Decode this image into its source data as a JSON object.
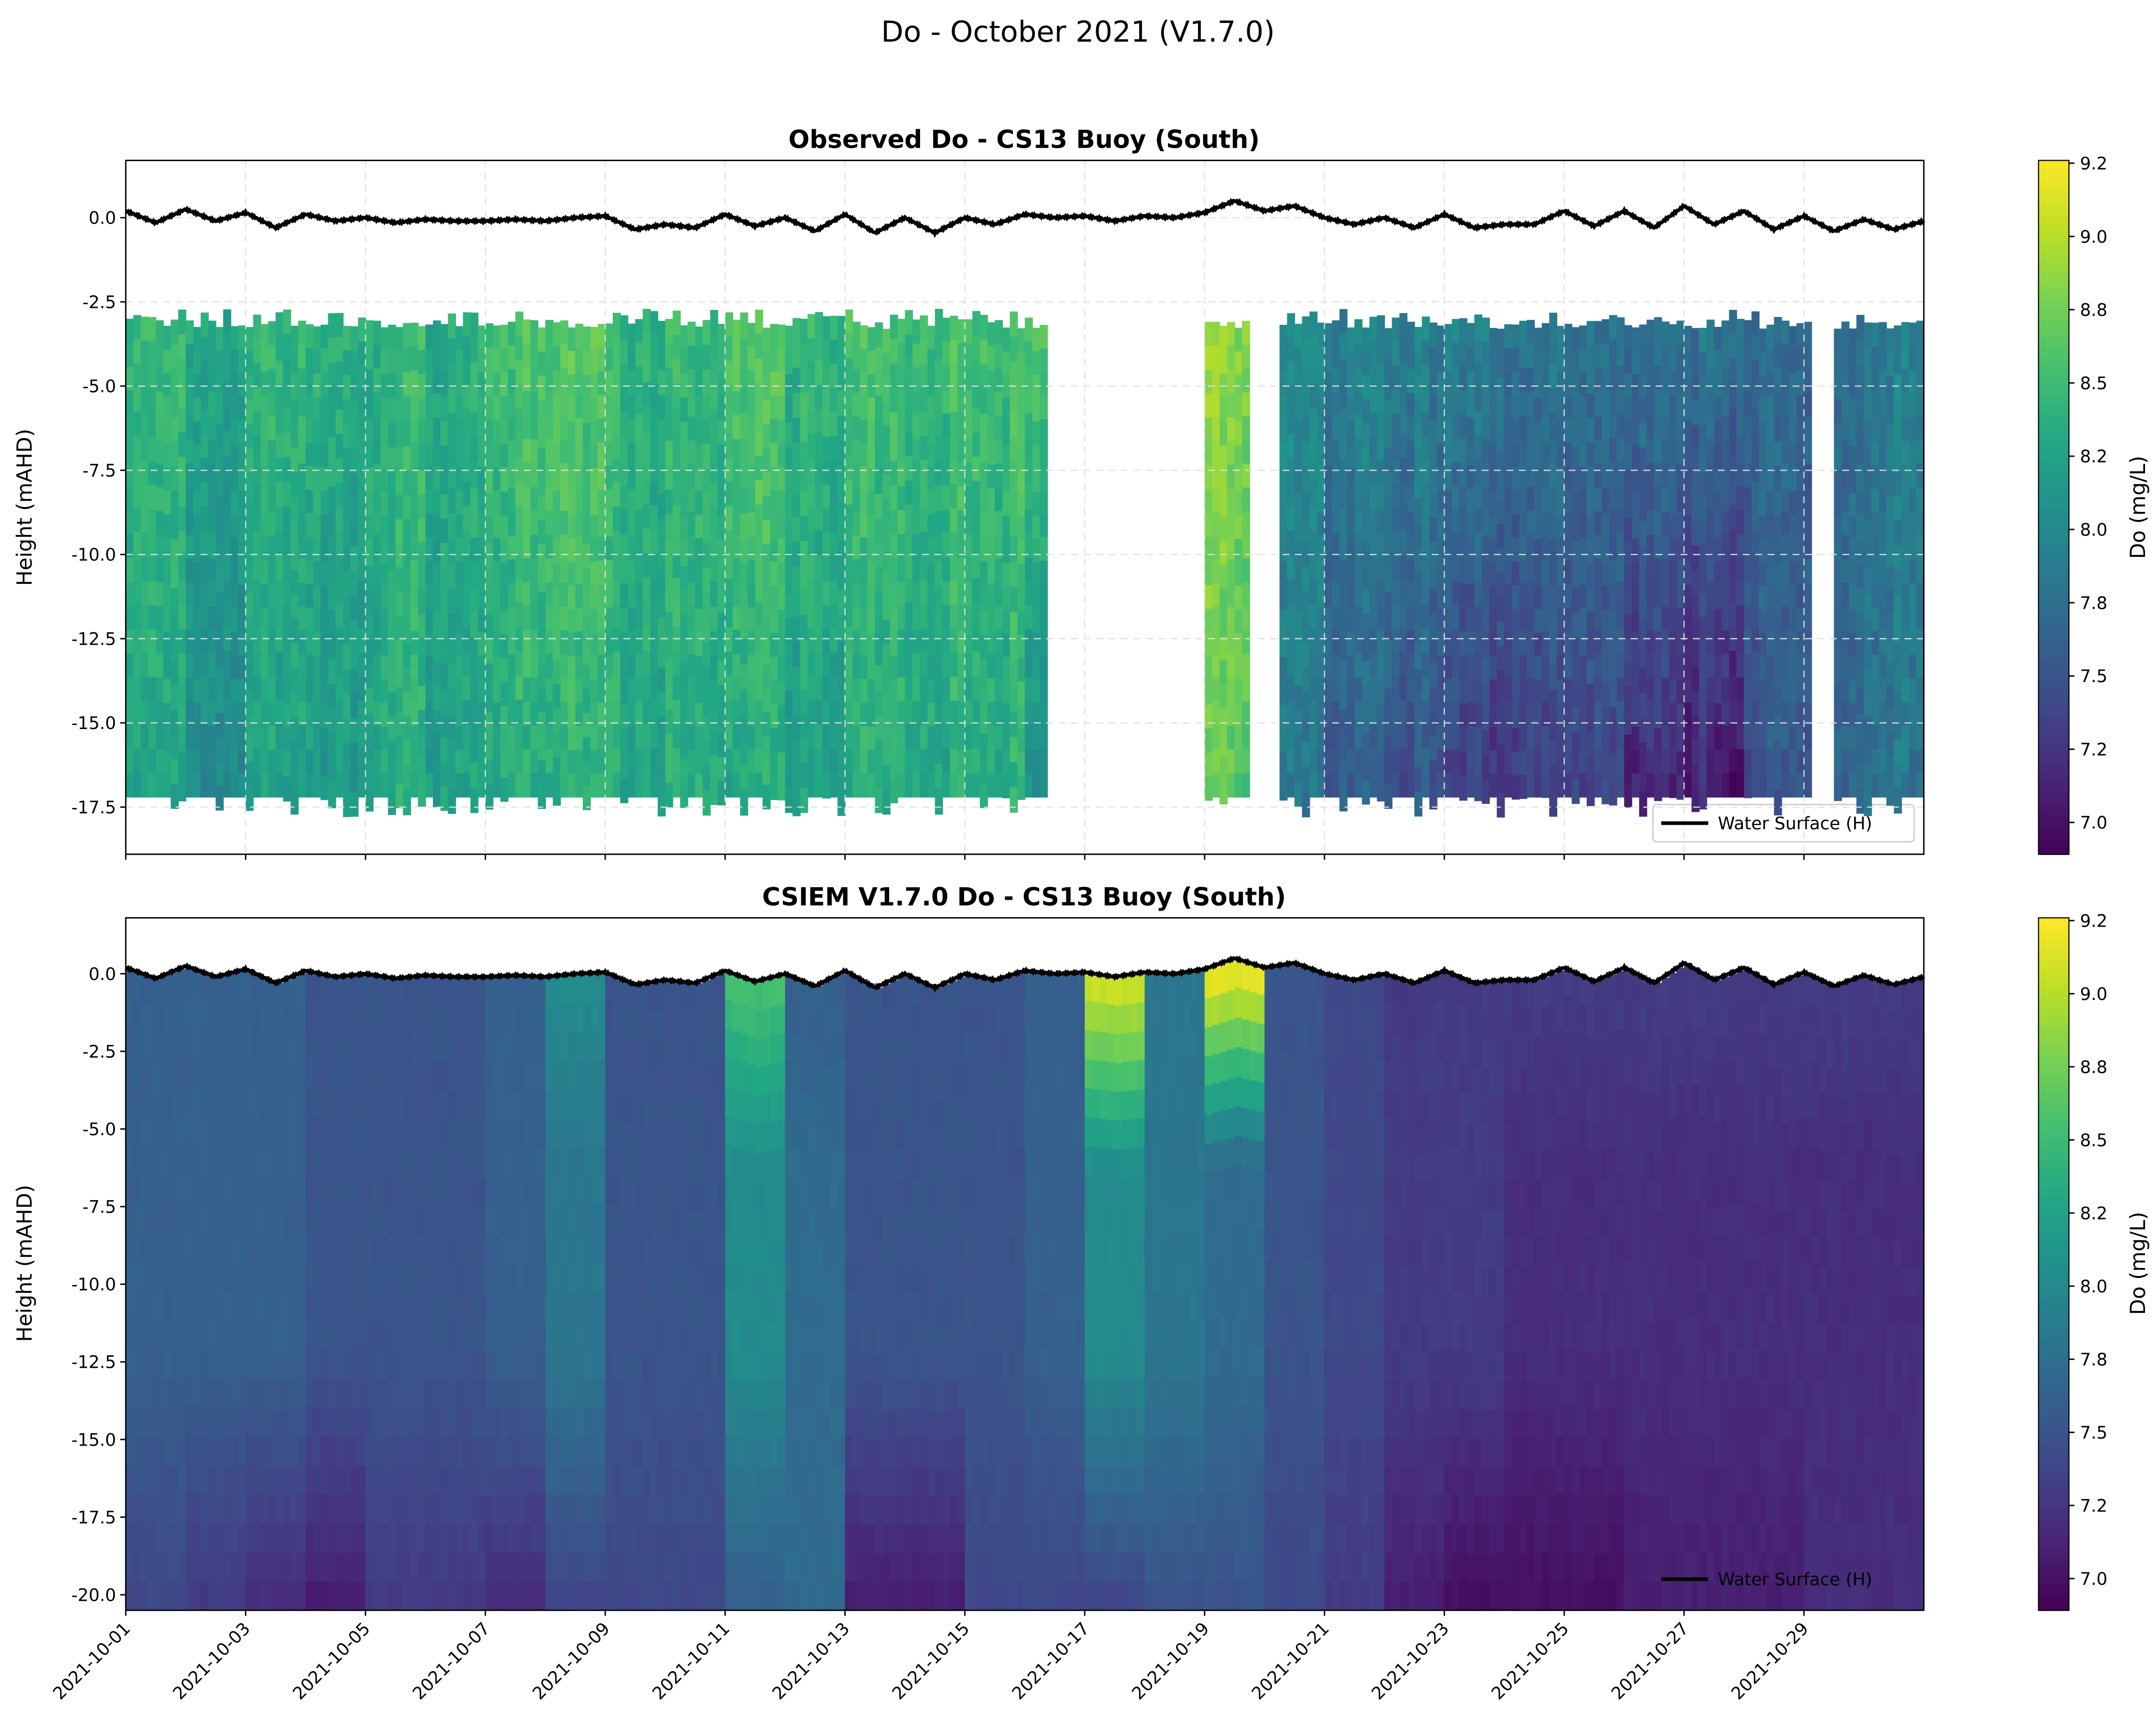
{
  "suptitle": "Do - October 2021 (V1.7.0)",
  "colors": {
    "water_surface": "#000000",
    "grid": "#e0e0e0",
    "colormap": "viridis"
  },
  "chart_data": [
    {
      "type": "heatmap",
      "title": "Observed Do - CS13 Buoy (South)",
      "ylabel": "Height (mAHD)",
      "xlim": [
        "2021-10-01",
        "2021-10-31"
      ],
      "ylim": [
        -18.9,
        1.7
      ],
      "grid": true,
      "yticks": [
        "0.0",
        "-2.5",
        "-5.0",
        "-7.5",
        "-10.0",
        "-12.5",
        "-15.0",
        "-17.5"
      ],
      "ytick_values": [
        0,
        -2.5,
        -5,
        -7.5,
        -10,
        -12.5,
        -15,
        -17.5
      ],
      "colorbar": {
        "label": "Do (mg/L)",
        "vmin": 6.9,
        "vmax": 9.2,
        "ticks": [
          "7.0",
          "7.2",
          "7.5",
          "7.8",
          "8.0",
          "8.2",
          "8.5",
          "8.8",
          "9.0",
          "9.2"
        ]
      },
      "legend": {
        "entries": [
          "Water Surface (H)"
        ],
        "placement": "lower right"
      },
      "observed_periods": [
        [
          "2021-10-01",
          "2021-10-16 08:00"
        ],
        [
          "2021-10-18 06:00",
          "2021-10-19 17:00"
        ],
        [
          "2021-10-20 06:00",
          "2021-10-29 03:00"
        ],
        [
          "2021-10-29 12:00",
          "2021-10-31"
        ]
      ],
      "profile_depth_range": [
        -3.0,
        -17.2
      ],
      "daily_do_top": [
        8.5,
        8.3,
        8.4,
        8.3,
        8.4,
        8.3,
        8.5,
        8.6,
        8.4,
        8.4,
        8.6,
        8.4,
        8.5,
        8.5,
        8.5,
        8.6,
        null,
        null,
        8.8,
        8.0,
        7.9,
        7.9,
        7.9,
        7.8,
        7.8,
        7.8,
        7.8,
        7.7,
        7.7,
        7.9
      ],
      "daily_do_bottom": [
        8.3,
        8.0,
        8.2,
        8.1,
        8.3,
        8.2,
        8.3,
        8.4,
        8.3,
        8.3,
        8.3,
        8.2,
        8.3,
        8.3,
        8.3,
        8.1,
        null,
        null,
        8.6,
        7.8,
        7.6,
        7.5,
        7.3,
        7.3,
        7.4,
        7.2,
        7.1,
        7.5,
        7.6,
        7.8
      ]
    },
    {
      "type": "heatmap",
      "title": "CSIEM V1.7.0 Do - CS13 Buoy (South)",
      "ylabel": "Height (mAHD)",
      "xlim": [
        "2021-10-01",
        "2021-10-31"
      ],
      "ylim": [
        -20.5,
        1.8
      ],
      "grid": false,
      "yticks": [
        "0.0",
        "-2.5",
        "-5.0",
        "-7.5",
        "-10.0",
        "-12.5",
        "-15.0",
        "-17.5",
        "-20.0"
      ],
      "ytick_values": [
        0,
        -2.5,
        -5,
        -7.5,
        -10,
        -12.5,
        -15,
        -17.5,
        -20
      ],
      "xticks": [
        "2021-10-01",
        "2021-10-03",
        "2021-10-05",
        "2021-10-07",
        "2021-10-09",
        "2021-10-11",
        "2021-10-13",
        "2021-10-15",
        "2021-10-17",
        "2021-10-19",
        "2021-10-21",
        "2021-10-23",
        "2021-10-25",
        "2021-10-27",
        "2021-10-29"
      ],
      "colorbar": {
        "label": "Do (mg/L)",
        "vmin": 6.9,
        "vmax": 9.2,
        "ticks": [
          "7.0",
          "7.2",
          "7.5",
          "7.8",
          "8.0",
          "8.2",
          "8.5",
          "8.8",
          "9.0",
          "9.2"
        ]
      },
      "legend": {
        "entries": [
          "Water Surface (H)"
        ],
        "placement": "lower right"
      },
      "profile_bottom": -20.5,
      "daily_do_top": [
        7.6,
        7.6,
        7.6,
        7.5,
        7.5,
        7.5,
        7.6,
        8.0,
        7.5,
        7.5,
        8.5,
        7.6,
        7.5,
        7.5,
        7.5,
        7.6,
        9.0,
        7.8,
        9.1,
        7.5,
        7.4,
        7.3,
        7.3,
        7.3,
        7.3,
        7.3,
        7.3,
        7.3,
        7.3,
        7.3
      ],
      "daily_do_mid": [
        7.6,
        7.6,
        7.6,
        7.5,
        7.5,
        7.5,
        7.6,
        7.8,
        7.5,
        7.5,
        8.0,
        7.7,
        7.5,
        7.5,
        7.5,
        7.6,
        8.0,
        7.8,
        7.7,
        7.5,
        7.4,
        7.3,
        7.3,
        7.2,
        7.2,
        7.2,
        7.2,
        7.2,
        7.2,
        7.2
      ],
      "daily_do_bottom": [
        7.4,
        7.3,
        7.2,
        7.1,
        7.3,
        7.3,
        7.2,
        7.4,
        7.4,
        7.4,
        7.6,
        7.7,
        7.1,
        7.1,
        7.4,
        7.4,
        7.4,
        7.5,
        7.5,
        7.4,
        7.3,
        7.1,
        7.0,
        7.0,
        7.0,
        7.1,
        7.1,
        7.1,
        7.2,
        7.2
      ]
    }
  ],
  "water_surface": {
    "name": "Water Surface (H)",
    "interval_hours": 12,
    "start": "2021-10-01",
    "values": [
      0.2,
      -0.15,
      0.25,
      -0.1,
      0.15,
      -0.3,
      0.1,
      -0.1,
      0.0,
      -0.15,
      -0.05,
      -0.1,
      -0.1,
      -0.05,
      -0.1,
      0.0,
      0.05,
      -0.35,
      -0.2,
      -0.3,
      0.1,
      -0.25,
      0.0,
      -0.4,
      0.1,
      -0.45,
      0.0,
      -0.45,
      0.0,
      -0.2,
      0.1,
      0.0,
      0.05,
      -0.1,
      0.05,
      0.0,
      0.15,
      0.5,
      0.2,
      0.35,
      0.0,
      -0.2,
      0.0,
      -0.3,
      0.1,
      -0.3,
      -0.2,
      -0.2,
      0.2,
      -0.25,
      0.2,
      -0.3,
      0.35,
      -0.2,
      0.2,
      -0.35,
      0.05,
      -0.4,
      -0.05,
      -0.35,
      -0.1
    ]
  }
}
